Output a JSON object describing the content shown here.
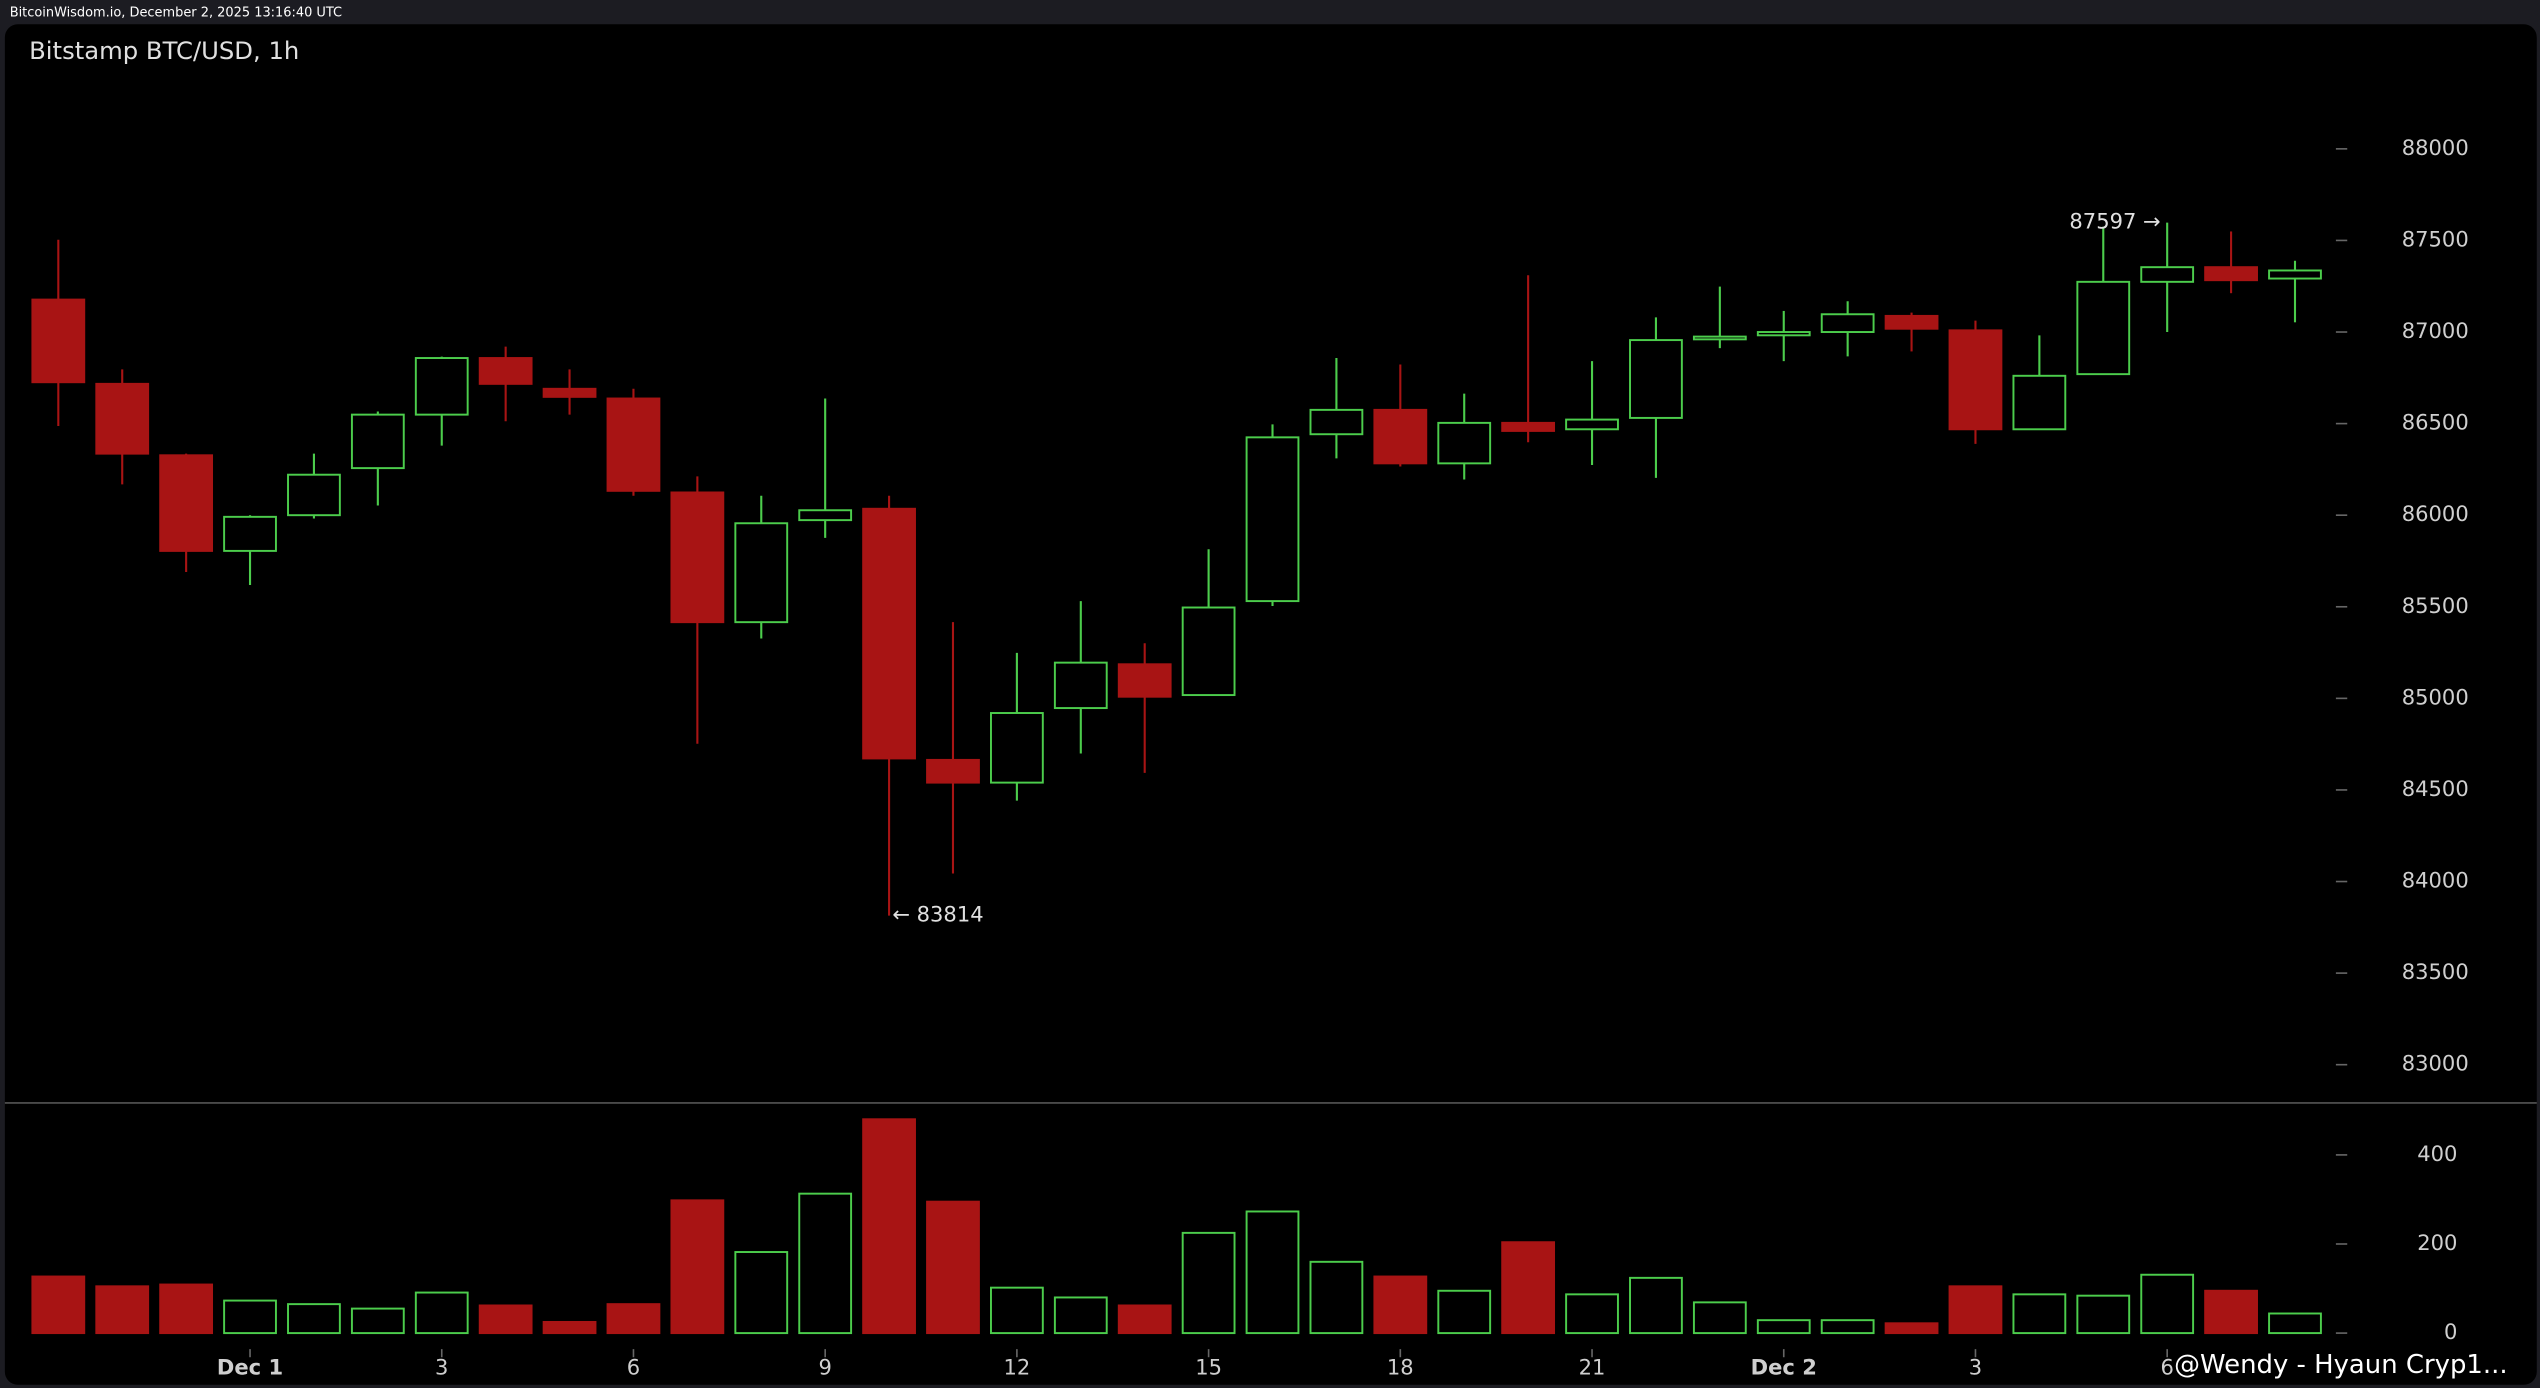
{
  "header": "BitcoinWisdom.io, December 2, 2025 13:16:40 UTC",
  "watermark": "@Wendy - Hyaun Cryp1...",
  "chart_data": {
    "type": "candlestick",
    "title": "Bitstamp BTC/USD, 1h",
    "categories": [
      null,
      null,
      null,
      "Dec 1",
      null,
      null,
      "3",
      null,
      null,
      "6",
      null,
      null,
      "9",
      null,
      null,
      "12",
      null,
      null,
      "15",
      null,
      null,
      "18",
      null,
      null,
      "21",
      null,
      null,
      "Dec 2",
      null,
      null,
      "3",
      null,
      null,
      "6",
      null,
      null
    ],
    "open": [
      87177,
      86717,
      86327,
      85805,
      86000,
      86257,
      86549,
      86858,
      86690,
      86637,
      86124,
      85416,
      85973,
      86035,
      84664,
      84540,
      84947,
      85186,
      85018,
      85531,
      86442,
      86575,
      86283,
      86504,
      86469,
      86531,
      86960,
      86982,
      87000,
      87088,
      87009,
      86469,
      86770,
      87274,
      87354,
      87292
    ],
    "high": [
      87504,
      86796,
      86336,
      86000,
      86336,
      86566,
      86866,
      86920,
      86796,
      86690,
      86212,
      86106,
      86637,
      86106,
      85416,
      85248,
      85531,
      85301,
      85814,
      86496,
      86858,
      86823,
      86664,
      87310,
      86841,
      87080,
      87248,
      87115,
      87168,
      87106,
      87062,
      86982,
      87575,
      87597,
      87549,
      87389
    ],
    "low": [
      86487,
      86168,
      85690,
      85619,
      85982,
      86053,
      86380,
      86513,
      86549,
      86106,
      84752,
      85327,
      85876,
      83814,
      84044,
      84442,
      84699,
      84593,
      85018,
      85504,
      86310,
      86266,
      86195,
      86398,
      86274,
      86204,
      86912,
      86841,
      86867,
      86894,
      86389,
      86469,
      86770,
      87000,
      87212,
      87053
    ],
    "close": [
      86726,
      86336,
      85805,
      85991,
      86221,
      86549,
      86858,
      86717,
      86646,
      86133,
      85416,
      85956,
      86027,
      84672,
      84540,
      84920,
      85195,
      85009,
      85496,
      86425,
      86575,
      86283,
      86504,
      86460,
      86522,
      86956,
      86975,
      87000,
      87097,
      87018,
      86469,
      86761,
      87274,
      87354,
      87283,
      87336
    ],
    "volume": [
      127,
      105,
      109,
      73,
      65,
      55,
      91,
      62,
      25,
      65,
      298,
      182,
      313,
      480,
      295,
      102,
      80,
      62,
      225,
      273,
      160,
      127,
      95,
      204,
      87,
      124,
      69,
      29,
      29,
      22,
      105,
      87,
      84,
      131,
      95,
      44
    ],
    "up_color": "#4ccd4c",
    "down_color": "#a81414",
    "ylim": [
      82800,
      88680
    ],
    "yticks": [
      83000,
      83500,
      84000,
      84500,
      85000,
      85500,
      86000,
      86500,
      87000,
      87500,
      88000
    ],
    "volume_ylim": [
      -36,
      513
    ],
    "volume_yticks": [
      0,
      200,
      400
    ],
    "high_label": "87597 →",
    "low_label": "← 83814"
  }
}
